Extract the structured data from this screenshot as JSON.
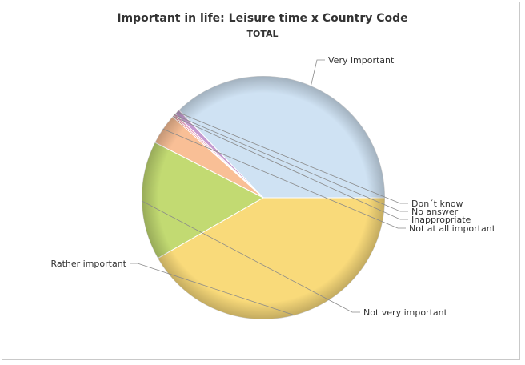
{
  "chart_data": {
    "type": "pie",
    "title": "Important in life: Leisure time x Country Code",
    "subtitle": "TOTAL",
    "slices": [
      {
        "label": "Very important",
        "value": 37.2,
        "color": "#cfe2f3"
      },
      {
        "label": "Don´t know",
        "value": 0.7,
        "color": "#c49bd0"
      },
      {
        "label": "No answer",
        "value": 0.3,
        "color": "#e8a0c0"
      },
      {
        "label": "Inappropriate",
        "value": 0.2,
        "color": "#d66"
      },
      {
        "label": "Not at all important",
        "value": 4.1,
        "color": "#f9bf96"
      },
      {
        "label": "Not very important",
        "value": 15.8,
        "color": "#c2da72"
      },
      {
        "label": "Rather important",
        "value": 41.7,
        "color": "#f9da7a"
      }
    ]
  }
}
